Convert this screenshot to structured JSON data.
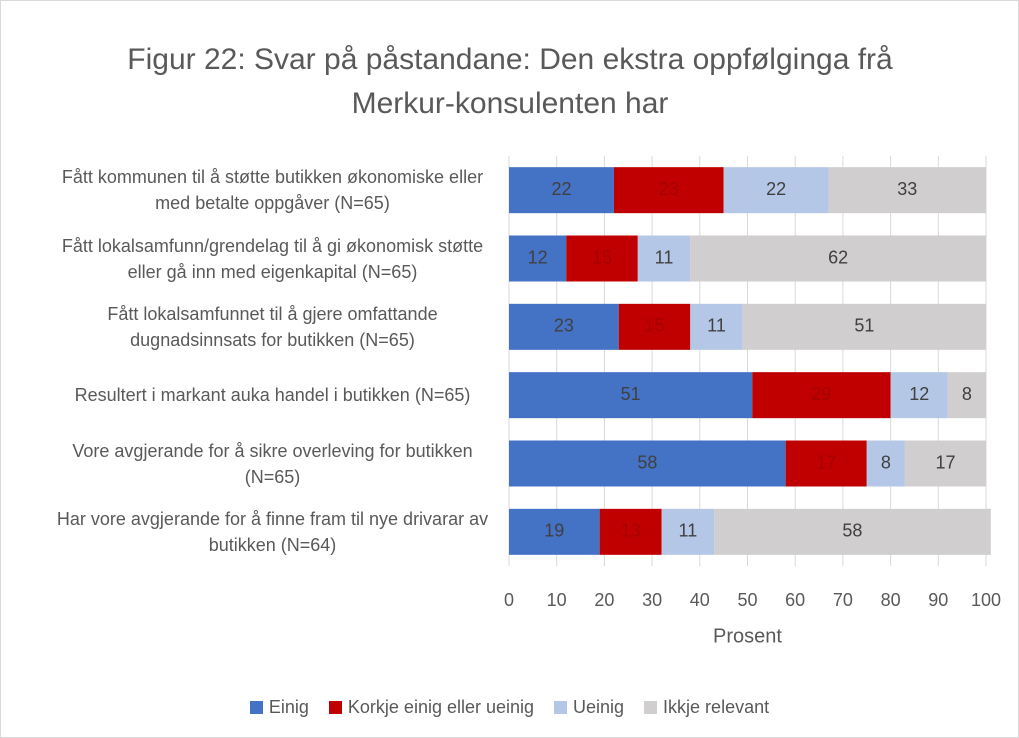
{
  "chart_data": {
    "type": "stacked_barh",
    "title": "Figur 22: Svar på påstandane: Den ekstra oppfølginga frå Merkur-konsulenten har",
    "xlabel": "Prosent",
    "categories": [
      "Fått kommunen til å støtte butikken økonomiske eller med betalte oppgåver (N=65)",
      "Fått lokalsamfunn/grendelag til å gi økonomisk støtte eller gå inn med eigenkapital (N=65)",
      "Fått lokalsamfunnet til å gjere omfattande dugnadsinnsats for butikken (N=65)",
      "Resultert i markant auka handel i butikken (N=65)",
      "Vore avgjerande for å sikre overleving for butikken (N=65)",
      "Har vore avgjerande for å finne fram til nye drivarar av butikken (N=64)"
    ],
    "series": [
      {
        "name": "Einig",
        "color": "#4472c4",
        "values": [
          22,
          12,
          23,
          51,
          58,
          19
        ]
      },
      {
        "name": "Korkje einig eller ueinig",
        "color": "#c00000",
        "values": [
          23,
          15,
          15,
          29,
          17,
          13
        ]
      },
      {
        "name": "Ueinig",
        "color": "#b4c7e7",
        "values": [
          22,
          11,
          11,
          12,
          8,
          11
        ]
      },
      {
        "name": "Ikkje relevant",
        "color": "#d0cece",
        "values": [
          33,
          62,
          51,
          8,
          17,
          58
        ]
      }
    ],
    "xlim": [
      0,
      100
    ],
    "xticks": [
      0,
      10,
      20,
      30,
      40,
      50,
      60,
      70,
      80,
      90,
      100
    ],
    "grid": true,
    "legend": "bottom"
  }
}
